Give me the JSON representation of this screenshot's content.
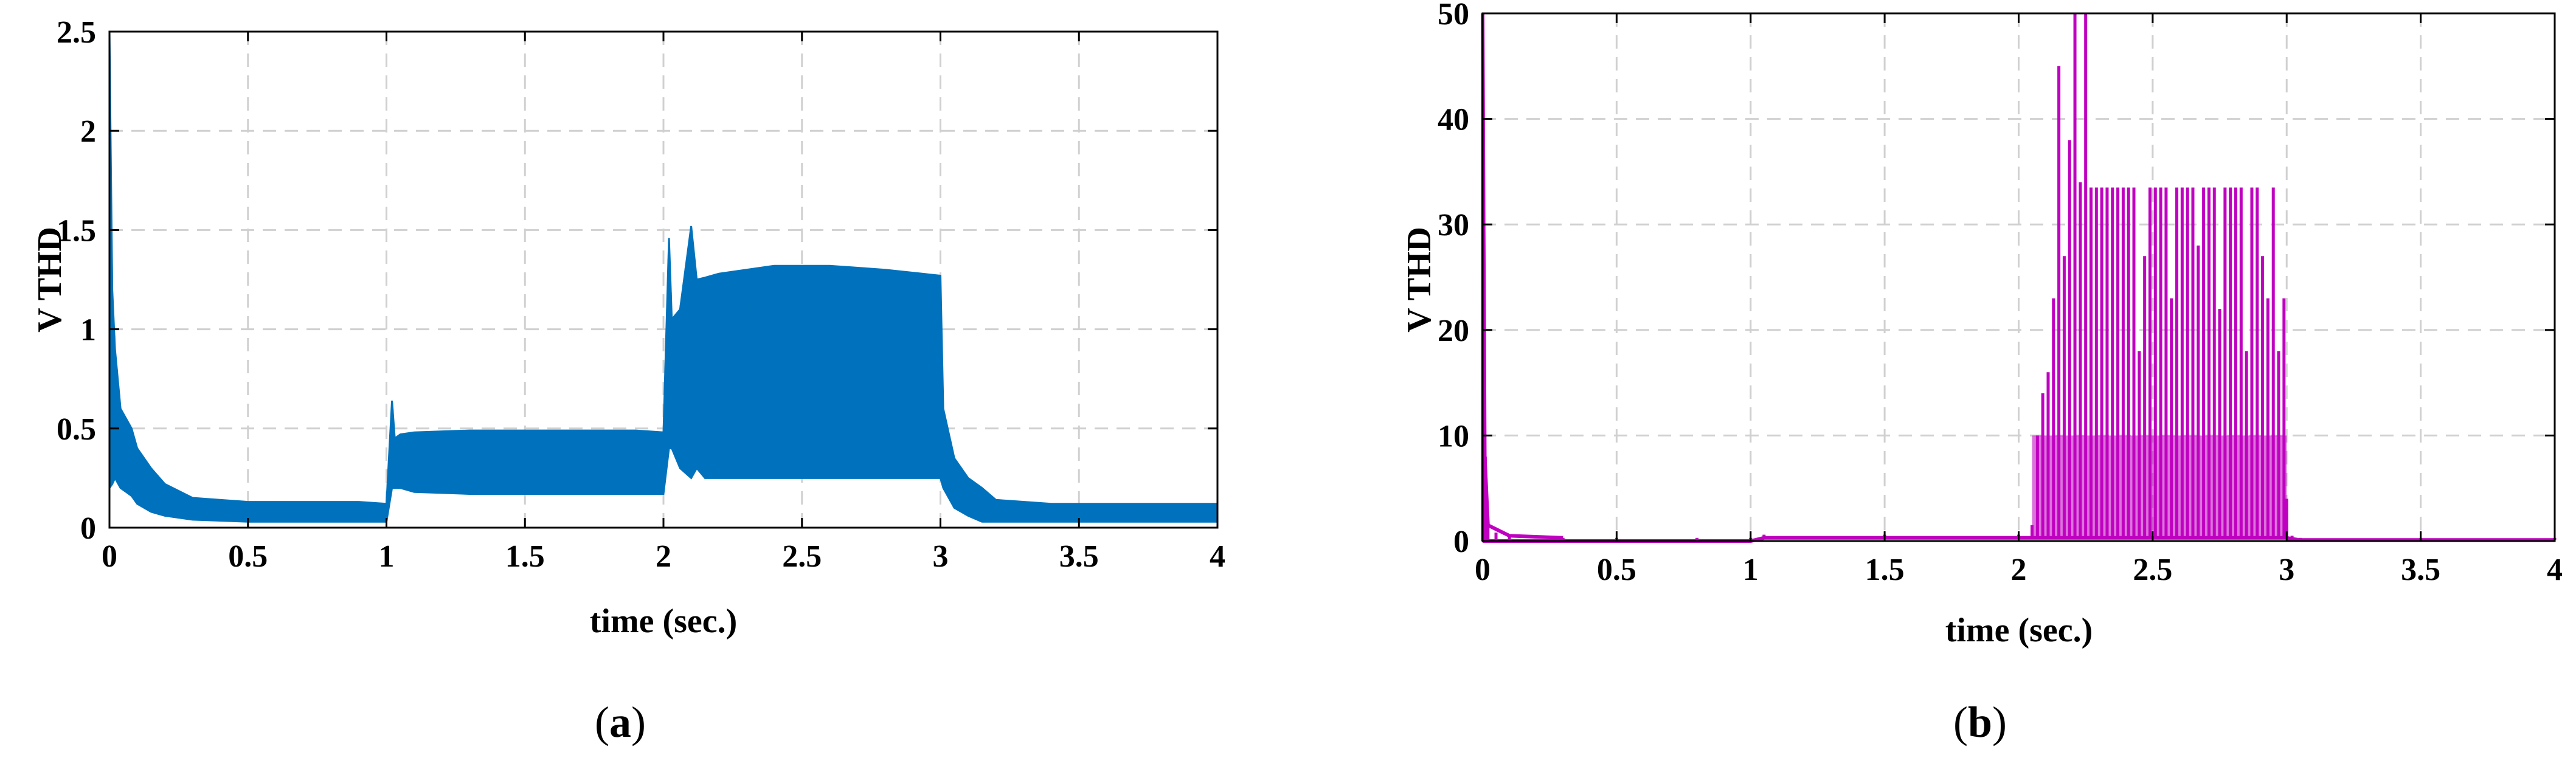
{
  "charts": [
    {
      "id": "a",
      "caption_letter": "a",
      "xlabel": "time (sec.)",
      "ylabel": "V THD",
      "xticks": [
        "0",
        "0.5",
        "1",
        "1.5",
        "2",
        "2.5",
        "3",
        "3.5",
        "4"
      ],
      "yticks": [
        "0",
        "0.5",
        "1",
        "1.5",
        "2",
        "2.5"
      ],
      "line_color": "#0072BD"
    },
    {
      "id": "b",
      "caption_letter": "b",
      "xlabel": "time (sec.)",
      "ylabel": "V THD",
      "xticks": [
        "0",
        "0.5",
        "1",
        "1.5",
        "2",
        "2.5",
        "3",
        "3.5",
        "4"
      ],
      "yticks": [
        "0",
        "10",
        "20",
        "30",
        "40",
        "50"
      ],
      "line_color": "#C000C0"
    }
  ],
  "chart_data": [
    {
      "type": "line",
      "title": "",
      "xlabel": "time (sec.)",
      "ylabel": "V THD",
      "xlim": [
        0,
        4
      ],
      "ylim": [
        0,
        2.5
      ],
      "grid": true,
      "series": [
        {
          "color": "#0072BD",
          "x": [
            0.0,
            0.01,
            0.02,
            0.04,
            0.06,
            0.08,
            0.1,
            0.15,
            0.2,
            0.3,
            0.5,
            0.7,
            0.9,
            1.0,
            1.02,
            1.03,
            1.05,
            1.1,
            1.3,
            1.5,
            1.7,
            1.9,
            2.0,
            2.02,
            2.03,
            2.06,
            2.1,
            2.12,
            2.15,
            2.2,
            2.4,
            2.6,
            2.8,
            3.0,
            3.01,
            3.05,
            3.1,
            3.15,
            3.2,
            3.4,
            3.6,
            3.8,
            4.0
          ],
          "y_max": [
            2.5,
            1.2,
            0.9,
            0.6,
            0.55,
            0.5,
            0.4,
            0.3,
            0.22,
            0.15,
            0.13,
            0.13,
            0.13,
            0.12,
            0.64,
            0.45,
            0.47,
            0.48,
            0.49,
            0.49,
            0.49,
            0.49,
            0.48,
            1.46,
            1.05,
            1.1,
            1.52,
            1.25,
            1.26,
            1.28,
            1.32,
            1.32,
            1.3,
            1.27,
            0.6,
            0.35,
            0.25,
            0.2,
            0.14,
            0.12,
            0.12,
            0.12,
            0.12
          ],
          "y_min": [
            0.2,
            0.22,
            0.25,
            0.2,
            0.18,
            0.16,
            0.12,
            0.08,
            0.06,
            0.04,
            0.03,
            0.03,
            0.03,
            0.03,
            0.2,
            0.2,
            0.2,
            0.18,
            0.17,
            0.17,
            0.17,
            0.17,
            0.17,
            0.4,
            0.4,
            0.3,
            0.25,
            0.3,
            0.25,
            0.25,
            0.25,
            0.25,
            0.25,
            0.25,
            0.2,
            0.1,
            0.06,
            0.03,
            0.03,
            0.03,
            0.03,
            0.03,
            0.03
          ]
        }
      ]
    },
    {
      "type": "line",
      "title": "",
      "xlabel": "time (sec.)",
      "ylabel": "V THD",
      "xlim": [
        0,
        4
      ],
      "ylim": [
        0,
        50
      ],
      "grid": true,
      "series": [
        {
          "color": "#C000C0",
          "x": [
            0.0,
            0.01,
            0.02,
            0.05,
            0.1,
            0.3,
            0.5,
            0.8,
            1.0,
            1.05,
            1.5,
            2.0,
            2.05,
            2.07,
            2.09,
            2.11,
            2.13,
            2.15,
            2.17,
            2.19,
            2.21,
            2.23,
            2.25,
            2.27,
            2.29,
            2.31,
            2.33,
            2.35,
            2.37,
            2.39,
            2.41,
            2.43,
            2.45,
            2.47,
            2.49,
            2.51,
            2.53,
            2.55,
            2.57,
            2.59,
            2.61,
            2.63,
            2.65,
            2.67,
            2.69,
            2.71,
            2.73,
            2.75,
            2.77,
            2.79,
            2.81,
            2.83,
            2.85,
            2.87,
            2.89,
            2.91,
            2.93,
            2.95,
            2.97,
            2.99,
            3.0,
            3.02,
            3.05,
            3.5,
            4.0
          ],
          "y": [
            50,
            8,
            1.5,
            0.8,
            0.5,
            0.3,
            0.3,
            0.3,
            0.3,
            0.6,
            0.6,
            0.6,
            1.5,
            10,
            14,
            16,
            23,
            45,
            27,
            38,
            50,
            34,
            50,
            33.5,
            33.5,
            33.5,
            33.5,
            33.5,
            33.5,
            33.5,
            33.5,
            33.5,
            18,
            27,
            33.5,
            33.5,
            33.5,
            33.5,
            23,
            33.5,
            33.5,
            33.5,
            33.5,
            28,
            33.5,
            33.5,
            33.5,
            22,
            33.5,
            33.5,
            33.5,
            33.5,
            18,
            33.5,
            33.5,
            27,
            23,
            33.5,
            18,
            23,
            4,
            0.5,
            0.3,
            0.3,
            0.3
          ],
          "y_floor": [
            0,
            0,
            0,
            0,
            0,
            0,
            0,
            0,
            0,
            0.3,
            0.3,
            0.3,
            0.3,
            0.3,
            0.3,
            0.3,
            0.3,
            0.3,
            0.3,
            0.3,
            0.3,
            0.3,
            0.3,
            0.3,
            0.3,
            0.3,
            0.3,
            0.3,
            0.3,
            0.3,
            0.3,
            0.3,
            0.3,
            0.3,
            0.3,
            0.3,
            0.3,
            0.3,
            0.3,
            0.3,
            0.3,
            0.3,
            0.3,
            0.3,
            0.3,
            0.3,
            0.3,
            0.3,
            0.3,
            0.3,
            0.3,
            0.3,
            0.3,
            0.3,
            0.3,
            0.3,
            0.3,
            0.3,
            0.3,
            0.3,
            0.3,
            0.2,
            0.1,
            0.1,
            0.1
          ]
        }
      ]
    }
  ]
}
